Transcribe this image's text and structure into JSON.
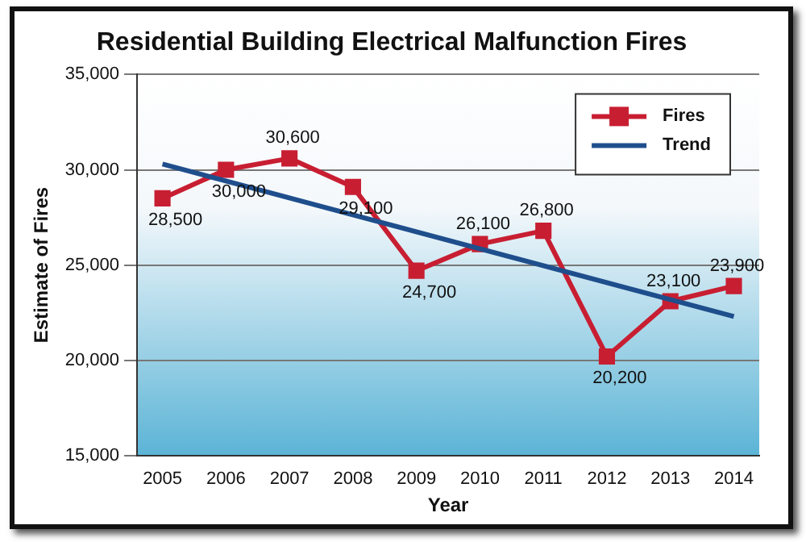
{
  "chart_data": {
    "type": "line",
    "title": "Residential Building Electrical Malfunction Fires",
    "xlabel": "Year",
    "ylabel": "Estimate of Fires",
    "x": [
      2005,
      2006,
      2007,
      2008,
      2009,
      2010,
      2011,
      2012,
      2013,
      2014
    ],
    "xlim": [
      2004.6,
      2014.4
    ],
    "xticks": [
      2005,
      2006,
      2007,
      2008,
      2009,
      2010,
      2011,
      2012,
      2013,
      2014
    ],
    "ylim": [
      15000,
      35000
    ],
    "yticks": [
      {
        "value": 15000,
        "label": "15,000"
      },
      {
        "value": 20000,
        "label": "20,000"
      },
      {
        "value": 25000,
        "label": "25,000"
      },
      {
        "value": 30000,
        "label": "30,000"
      },
      {
        "value": 35000,
        "label": "35,000"
      }
    ],
    "series": [
      {
        "name": "Fires",
        "color": "#c81e32",
        "marker": "square",
        "values": [
          28500,
          30000,
          30600,
          29100,
          24700,
          26100,
          26800,
          20200,
          23100,
          23900
        ],
        "value_labels": [
          "28,500",
          "30,000",
          "30,600",
          "29,100",
          "24,700",
          "26,100",
          "26,800",
          "20,200",
          "23,100",
          "23,900"
        ]
      },
      {
        "name": "Trend",
        "color": "#1f4e8c",
        "marker": "none",
        "x": [
          2005,
          2014
        ],
        "values": [
          30300,
          22300
        ]
      }
    ],
    "grid": "y",
    "legend": "top right",
    "line_style": "solid"
  }
}
